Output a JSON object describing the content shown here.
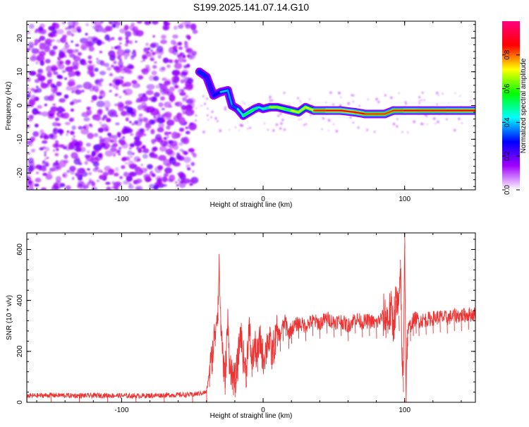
{
  "figure": {
    "title": "S199.2025.141.07.14.G10"
  },
  "chart_data": [
    {
      "id": "spectrogram",
      "type": "heatmap",
      "xlabel": "Height of straight line (km)",
      "ylabel": "Frequency (Hz)",
      "xlim": [
        -167,
        150
      ],
      "ylim": [
        -25,
        25
      ],
      "x_ticks": [
        -100,
        0,
        100
      ],
      "y_ticks": [
        -20,
        -10,
        0,
        10,
        20
      ],
      "grid": false,
      "noise_region": {
        "x": [
          -167,
          -48
        ],
        "y": [
          -25,
          25
        ],
        "mean_amplitude": 0.15
      },
      "signal_track": [
        {
          "x": -45,
          "y": 10,
          "amplitude": 0.35
        },
        {
          "x": -40,
          "y": 8.5,
          "amplitude": 0.25
        },
        {
          "x": -35,
          "y": 3,
          "amplitude": 0.2
        },
        {
          "x": -30,
          "y": 4,
          "amplitude": 0.35
        },
        {
          "x": -25,
          "y": 4.5,
          "amplitude": 0.45
        },
        {
          "x": -22,
          "y": 0,
          "amplitude": 0.3
        },
        {
          "x": -18,
          "y": -1,
          "amplitude": 0.35
        },
        {
          "x": -14,
          "y": -3,
          "amplitude": 0.5
        },
        {
          "x": -10,
          "y": -2,
          "amplitude": 0.6
        },
        {
          "x": -6,
          "y": -1,
          "amplitude": 0.55
        },
        {
          "x": -3,
          "y": -0.5,
          "amplitude": 0.45
        },
        {
          "x": 0,
          "y": -1,
          "amplitude": 0.4
        },
        {
          "x": 5,
          "y": -0.5,
          "amplitude": 0.6
        },
        {
          "x": 10,
          "y": -0.5,
          "amplitude": 0.75
        },
        {
          "x": 15,
          "y": -1,
          "amplitude": 0.55
        },
        {
          "x": 20,
          "y": -1.5,
          "amplitude": 0.65
        },
        {
          "x": 25,
          "y": -2,
          "amplitude": 0.75
        },
        {
          "x": 30,
          "y": -0.5,
          "amplitude": 0.6
        },
        {
          "x": 36,
          "y": -1.5,
          "amplitude": 0.8
        },
        {
          "x": 45,
          "y": -1.5,
          "amplitude": 0.88
        },
        {
          "x": 55,
          "y": -1.5,
          "amplitude": 0.9
        },
        {
          "x": 65,
          "y": -2,
          "amplitude": 0.88
        },
        {
          "x": 72,
          "y": -2.5,
          "amplitude": 0.85
        },
        {
          "x": 80,
          "y": -2.5,
          "amplitude": 0.8
        },
        {
          "x": 86,
          "y": -2.5,
          "amplitude": 0.85
        },
        {
          "x": 92,
          "y": -1.5,
          "amplitude": 0.8
        },
        {
          "x": 100,
          "y": -1.5,
          "amplitude": 0.88
        },
        {
          "x": 110,
          "y": -1.5,
          "amplitude": 0.85
        },
        {
          "x": 120,
          "y": -1.5,
          "amplitude": 0.85
        },
        {
          "x": 130,
          "y": -1.5,
          "amplitude": 0.85
        },
        {
          "x": 140,
          "y": -1.5,
          "amplitude": 0.88
        },
        {
          "x": 150,
          "y": -1.5,
          "amplitude": 0.85
        }
      ],
      "colorbar": {
        "label": "Normalized spectral amplitude",
        "range": [
          0,
          1
        ],
        "ticks": [
          0.0,
          0.2,
          0.4,
          0.6,
          0.8
        ],
        "colors": [
          "#ffffff",
          "#a000ff",
          "#0000ff",
          "#00ffff",
          "#00ff00",
          "#ffff00",
          "#ff0000",
          "#ff0080"
        ]
      }
    },
    {
      "id": "snr",
      "type": "line",
      "xlabel": "Height of straight line (km)",
      "ylabel": "SNR (10 * v/v)",
      "xlim": [
        -167,
        150
      ],
      "ylim": [
        0,
        665
      ],
      "x_ticks": [
        -100,
        0,
        100
      ],
      "y_ticks": [
        0,
        200,
        400,
        600
      ],
      "grid": false,
      "color": "#ee3333",
      "series": [
        {
          "x": [
            -167,
            -150,
            -130,
            -110,
            -90,
            -70,
            -50,
            -40,
            -38,
            -36,
            -34,
            -32,
            -31,
            -30,
            -29,
            -28,
            -27,
            -26,
            -25,
            -24,
            -22,
            -20,
            -18,
            -16,
            -14,
            -12,
            -10,
            -8,
            -6,
            -4,
            -2,
            0,
            2,
            4,
            6,
            8,
            10,
            12,
            14,
            16,
            18,
            20,
            25,
            30,
            35,
            40,
            45,
            50,
            55,
            60,
            65,
            70,
            75,
            80,
            85,
            88,
            90,
            92,
            94,
            96,
            97,
            98,
            99,
            100,
            101,
            102,
            104,
            106,
            108,
            110,
            115,
            120,
            125,
            130,
            135,
            140,
            145,
            150
          ],
          "y": [
            25,
            28,
            26,
            27,
            25,
            28,
            30,
            40,
            120,
            180,
            280,
            380,
            530,
            320,
            250,
            140,
            90,
            200,
            320,
            180,
            110,
            80,
            150,
            280,
            180,
            120,
            300,
            160,
            220,
            180,
            250,
            170,
            210,
            260,
            190,
            230,
            280,
            260,
            300,
            320,
            270,
            290,
            310,
            300,
            320,
            310,
            330,
            315,
            320,
            300,
            330,
            315,
            320,
            310,
            340,
            330,
            360,
            310,
            400,
            340,
            560,
            200,
            100,
            665,
            30,
            280,
            300,
            320,
            330,
            320,
            325,
            330,
            335,
            330,
            340,
            340,
            345,
            345
          ]
        }
      ]
    }
  ]
}
